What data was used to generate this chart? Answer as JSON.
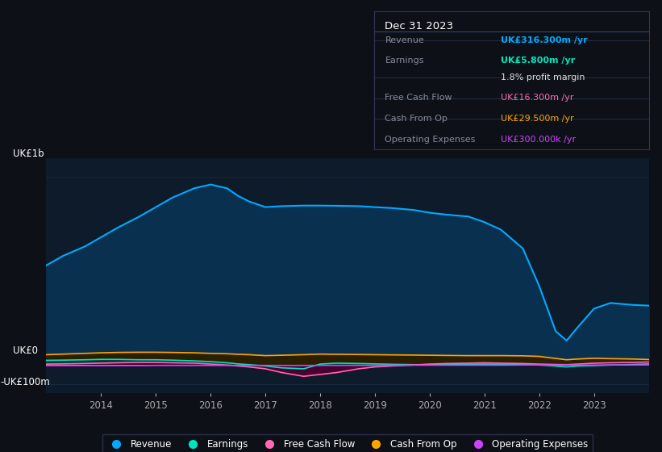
{
  "bg_color": "#0d1117",
  "plot_bg_color": "#0d1b2a",
  "grid_color": "#1a2e45",
  "title_box": {
    "date": "Dec 31 2023",
    "rows": [
      {
        "label": "Revenue",
        "value": "UK£316.300m /yr",
        "value_color": "#00aaff",
        "label_color": "#888899"
      },
      {
        "label": "Earnings",
        "value": "UK£5.800m /yr",
        "value_color": "#00e5c0",
        "label_color": "#888899"
      },
      {
        "label": "",
        "value": "1.8% profit margin",
        "value_color": "#dddddd",
        "label_color": "#888899"
      },
      {
        "label": "Free Cash Flow",
        "value": "UK£16.300m /yr",
        "value_color": "#ff69b4",
        "label_color": "#888899"
      },
      {
        "label": "Cash From Op",
        "value": "UK£29.500m /yr",
        "value_color": "#ffa500",
        "label_color": "#888899"
      },
      {
        "label": "Operating Expenses",
        "value": "UK£300.000k /yr",
        "value_color": "#cc44ff",
        "label_color": "#888899"
      }
    ]
  },
  "ylabel_top": "UK£1b",
  "ylabel_zero": "UK£0",
  "ylabel_neg": "-UK£100m",
  "ylim": [
    -150,
    1100
  ],
  "ytick_vals": [
    -100,
    0,
    1000
  ],
  "years": [
    2013.0,
    2013.3,
    2013.7,
    2014.0,
    2014.3,
    2014.7,
    2015.0,
    2015.3,
    2015.7,
    2016.0,
    2016.3,
    2016.5,
    2016.7,
    2017.0,
    2017.3,
    2017.7,
    2018.0,
    2018.3,
    2018.7,
    2019.0,
    2019.3,
    2019.7,
    2020.0,
    2020.3,
    2020.7,
    2021.0,
    2021.3,
    2021.7,
    2022.0,
    2022.3,
    2022.5,
    2022.7,
    2023.0,
    2023.3,
    2023.7,
    2024.0
  ],
  "revenue": [
    530,
    580,
    630,
    680,
    730,
    790,
    840,
    890,
    940,
    960,
    940,
    900,
    870,
    840,
    845,
    848,
    848,
    847,
    845,
    840,
    835,
    825,
    810,
    800,
    790,
    760,
    720,
    620,
    420,
    180,
    130,
    200,
    300,
    330,
    320,
    316
  ],
  "earnings": [
    25,
    26,
    28,
    30,
    30,
    28,
    28,
    26,
    22,
    18,
    12,
    6,
    2,
    -5,
    -15,
    -20,
    5,
    10,
    8,
    6,
    4,
    2,
    2,
    3,
    4,
    5,
    4,
    3,
    0,
    -5,
    -10,
    -5,
    -3,
    0,
    3,
    5.8
  ],
  "free_cash_flow": [
    5,
    6,
    8,
    10,
    12,
    14,
    14,
    12,
    10,
    5,
    0,
    -5,
    -10,
    -20,
    -40,
    -60,
    -50,
    -40,
    -20,
    -10,
    -5,
    0,
    5,
    8,
    10,
    12,
    10,
    8,
    5,
    3,
    2,
    5,
    10,
    12,
    14,
    16.3
  ],
  "cash_from_op": [
    55,
    58,
    62,
    65,
    67,
    68,
    68,
    67,
    65,
    62,
    60,
    57,
    55,
    50,
    52,
    55,
    58,
    57,
    56,
    55,
    54,
    53,
    52,
    51,
    50,
    50,
    50,
    49,
    46,
    35,
    28,
    32,
    36,
    34,
    32,
    29.5
  ],
  "op_expenses": [
    -3,
    -3,
    -3,
    -3,
    -3,
    -3,
    -2,
    -2,
    -2,
    -2,
    -2,
    -2,
    -2,
    -2,
    -2,
    -2,
    -2,
    -2,
    -2,
    -2,
    -1,
    -1,
    -1,
    -1,
    -1,
    -1,
    -1,
    0,
    0,
    0,
    0,
    0,
    0.1,
    0.1,
    0.2,
    0.3
  ],
  "revenue_color": "#00aaff",
  "revenue_fill": "#0a3050",
  "earnings_color": "#00e5c0",
  "earnings_fill": "#003838",
  "free_cash_flow_color": "#ff69b4",
  "free_cash_flow_fill": "#500030",
  "cash_from_op_color": "#ffa500",
  "cash_from_op_fill": "#2a2000",
  "op_expenses_color": "#cc44ff",
  "op_expenses_fill": "#200030",
  "legend_items": [
    {
      "label": "Revenue",
      "color": "#00aaff"
    },
    {
      "label": "Earnings",
      "color": "#00e5c0"
    },
    {
      "label": "Free Cash Flow",
      "color": "#ff69b4"
    },
    {
      "label": "Cash From Op",
      "color": "#ffa500"
    },
    {
      "label": "Operating Expenses",
      "color": "#cc44ff"
    }
  ],
  "xticks": [
    2014,
    2015,
    2016,
    2017,
    2018,
    2019,
    2020,
    2021,
    2022,
    2023
  ]
}
